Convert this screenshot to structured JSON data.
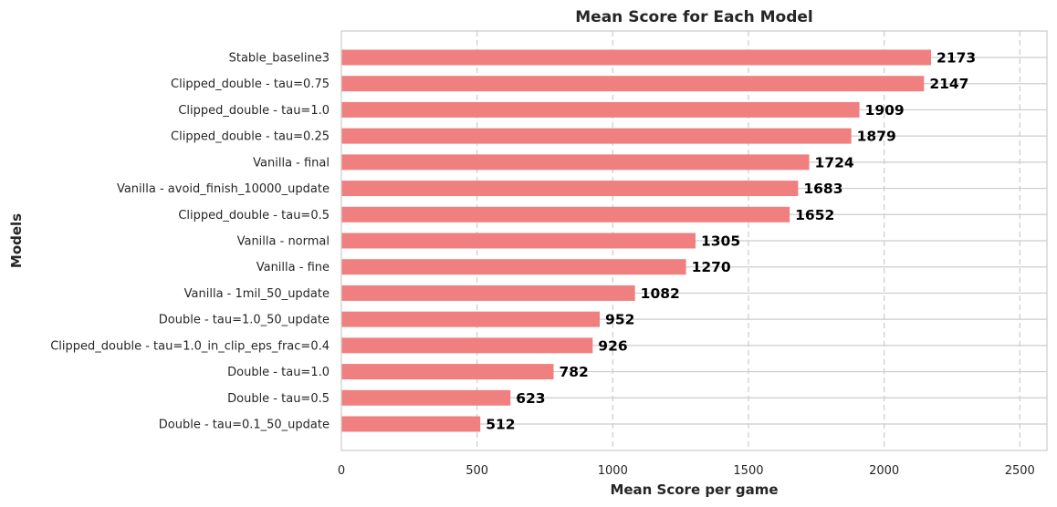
{
  "chart_data": {
    "type": "bar",
    "orientation": "horizontal",
    "title": "Mean Score for Each Model",
    "xlabel": "Mean Score per game",
    "ylabel": "Models",
    "xlim": [
      0,
      2600
    ],
    "xticks": [
      0,
      500,
      1000,
      1500,
      2000,
      2500
    ],
    "grid": {
      "x": true,
      "y": true,
      "x_style": "dashed",
      "y_style": "solid"
    },
    "legend": "none",
    "colors": {
      "bar": "#f08080",
      "grid": "#cccccc",
      "frame": "#cccccc"
    },
    "categories": [
      "Stable_baseline3",
      "Clipped_double - tau=0.75",
      "Clipped_double - tau=1.0",
      "Clipped_double - tau=0.25",
      "Vanilla - final",
      "Vanilla - avoid_finish_10000_update",
      "Clipped_double - tau=0.5",
      "Vanilla - normal",
      "Vanilla - fine",
      "Vanilla - 1mil_50_update",
      "Double - tau=1.0_50_update",
      "Clipped_double - tau=1.0_in_clip_eps_frac=0.4",
      "Double - tau=1.0",
      "Double - tau=0.5",
      "Double - tau=0.1_50_update"
    ],
    "values": [
      2173,
      2147,
      1909,
      1879,
      1724,
      1683,
      1652,
      1305,
      1270,
      1082,
      952,
      926,
      782,
      623,
      512
    ]
  }
}
